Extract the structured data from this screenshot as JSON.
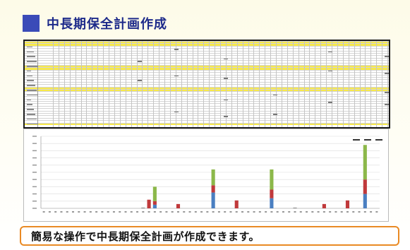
{
  "header": {
    "title": "中長期保全計画作成",
    "accent": "#3b4bb8"
  },
  "spreadsheet": {
    "band_color": "#f7e94a",
    "border_color": "#1b1b1b"
  },
  "chart_data": {
    "type": "bar",
    "stacked": true,
    "title": "",
    "xlabel": "",
    "ylabel": "",
    "ylim": [
      0,
      100
    ],
    "grid": true,
    "legend_placement": "top-right",
    "category_count": 58,
    "series": [
      {
        "color": "#4a7fc1",
        "values": [
          0,
          0,
          0,
          0,
          0,
          0,
          0,
          0,
          0,
          0,
          0,
          0,
          0,
          0,
          0,
          0,
          0,
          0,
          0,
          5,
          0,
          0,
          0,
          0,
          0,
          0,
          0,
          0,
          0,
          22,
          0,
          0,
          0,
          0,
          0,
          0,
          0,
          0,
          0,
          14,
          0,
          0,
          0,
          0,
          0,
          0,
          0,
          0,
          0,
          0,
          0,
          0,
          0,
          0,
          0,
          20,
          0,
          0
        ]
      },
      {
        "color": "#c0393b",
        "values": [
          0,
          0,
          0,
          0,
          0,
          0,
          0,
          0,
          0,
          0,
          0,
          0,
          0,
          0,
          0,
          0,
          0,
          0,
          12,
          5,
          0,
          0,
          0,
          6,
          0,
          0,
          0,
          0,
          0,
          10,
          0,
          0,
          0,
          11,
          0,
          0,
          0,
          0,
          0,
          12,
          0,
          0,
          0,
          0,
          0,
          0,
          0,
          0,
          6,
          0,
          0,
          0,
          11,
          0,
          0,
          20,
          0,
          0
        ]
      },
      {
        "color": "#8cb84a",
        "values": [
          0,
          0,
          0,
          0,
          0,
          0,
          0,
          0,
          0,
          0,
          0,
          0,
          0,
          0,
          0,
          0,
          0,
          0,
          0,
          20,
          0,
          0,
          0,
          0,
          0,
          0,
          0,
          0,
          0,
          22,
          0,
          0,
          0,
          0,
          0,
          0,
          0,
          0,
          0,
          28,
          0,
          0,
          0,
          0,
          0,
          0,
          0,
          0,
          0,
          0,
          0,
          0,
          0,
          0,
          0,
          48,
          0,
          0
        ]
      },
      {
        "color": "#888888",
        "values": [
          0,
          0,
          0,
          0,
          0,
          0,
          0,
          0,
          0,
          0,
          0,
          0,
          0,
          0,
          0,
          0,
          0,
          1,
          0,
          0,
          0,
          0,
          0,
          0,
          0,
          0,
          0,
          0,
          0,
          0,
          0,
          0,
          0,
          0,
          0,
          0,
          0,
          0,
          0,
          0,
          0,
          0,
          0,
          1,
          0,
          0,
          0,
          0,
          0,
          0,
          0,
          0,
          0,
          0,
          0,
          0,
          0,
          0
        ]
      }
    ]
  },
  "caption": {
    "text": "簡易な操作で中長期保全計画が作成できます。",
    "border_color": "#e98a24"
  }
}
